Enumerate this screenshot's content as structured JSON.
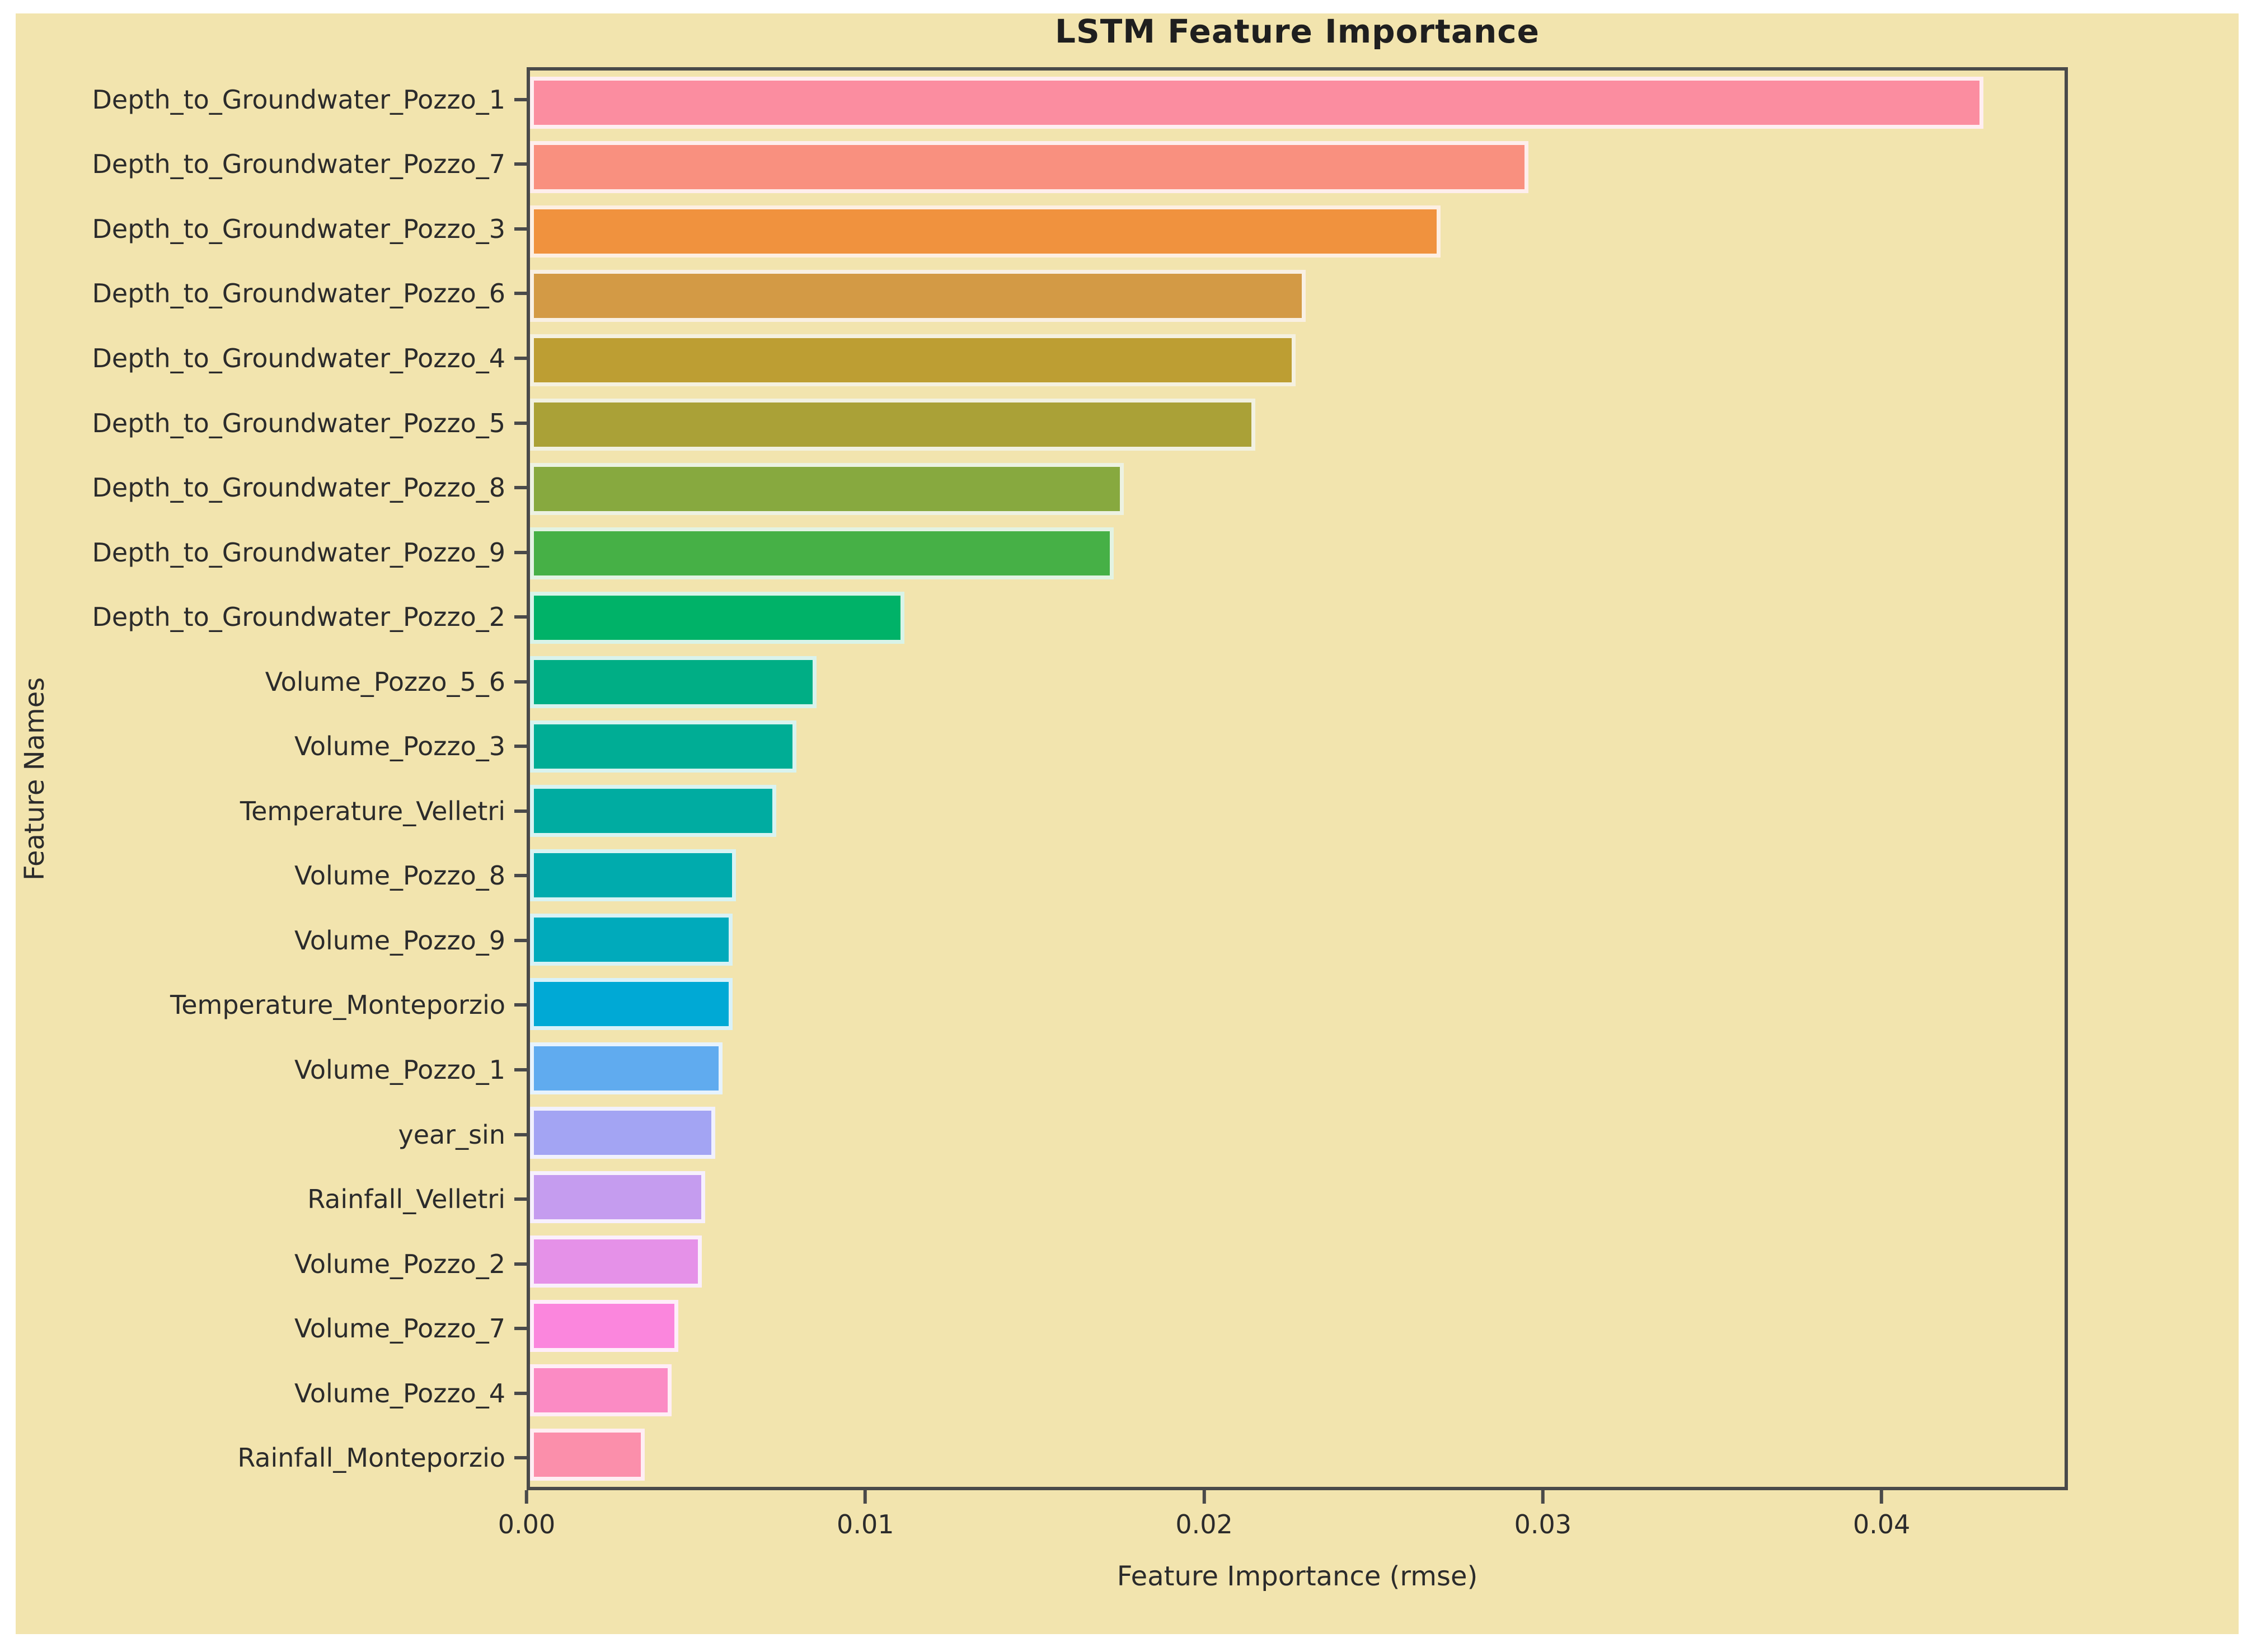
{
  "figure": {
    "outer_background": "#ffffff",
    "plot_background": "#f2e4ae",
    "spine_color": "#4a4a4a",
    "text_color": "#2b2b2b",
    "bar_edge_color": "#ffffff"
  },
  "chart_data": {
    "type": "bar",
    "orientation": "horizontal",
    "title": "LSTM Feature Importance",
    "xlabel": "Feature Importance (rmse)",
    "ylabel": "Feature Names",
    "grid": false,
    "legend": null,
    "xlim": [
      0,
      0.0455
    ],
    "x_ticks": [
      "0.00",
      "0.01",
      "0.02",
      "0.03",
      "0.04"
    ],
    "x_tick_values": [
      0,
      0.01,
      0.02,
      0.03,
      0.04
    ],
    "categories": [
      "Depth_to_Groundwater_Pozzo_1",
      "Depth_to_Groundwater_Pozzo_7",
      "Depth_to_Groundwater_Pozzo_3",
      "Depth_to_Groundwater_Pozzo_6",
      "Depth_to_Groundwater_Pozzo_4",
      "Depth_to_Groundwater_Pozzo_5",
      "Depth_to_Groundwater_Pozzo_8",
      "Depth_to_Groundwater_Pozzo_9",
      "Depth_to_Groundwater_Pozzo_2",
      "Volume_Pozzo_5_6",
      "Volume_Pozzo_3",
      "Temperature_Velletri",
      "Volume_Pozzo_8",
      "Volume_Pozzo_9",
      "Temperature_Monteporzio",
      "Volume_Pozzo_1",
      "year_sin",
      "Rainfall_Velletri",
      "Volume_Pozzo_2",
      "Volume_Pozzo_7",
      "Volume_Pozzo_4",
      "Rainfall_Monteporzio"
    ],
    "values": [
      0.0431,
      0.0296,
      0.027,
      0.023,
      0.0227,
      0.0215,
      0.0176,
      0.0173,
      0.0111,
      0.0085,
      0.0079,
      0.0073,
      0.0061,
      0.006,
      0.006,
      0.0057,
      0.0055,
      0.0052,
      0.0051,
      0.0044,
      0.0042,
      0.0034
    ],
    "colors": [
      "#fb8da0",
      "#f9907f",
      "#f0923e",
      "#d39a45",
      "#bd9e33",
      "#aaa137",
      "#87a93f",
      "#46b046",
      "#00b268",
      "#00ae85",
      "#00ad95",
      "#00aca1",
      "#00abad",
      "#00aabb",
      "#00a9d5",
      "#60abef",
      "#a3a4f3",
      "#c59cef",
      "#e591e8",
      "#fb86dd",
      "#fb8bc4",
      "#fb8fab"
    ]
  }
}
